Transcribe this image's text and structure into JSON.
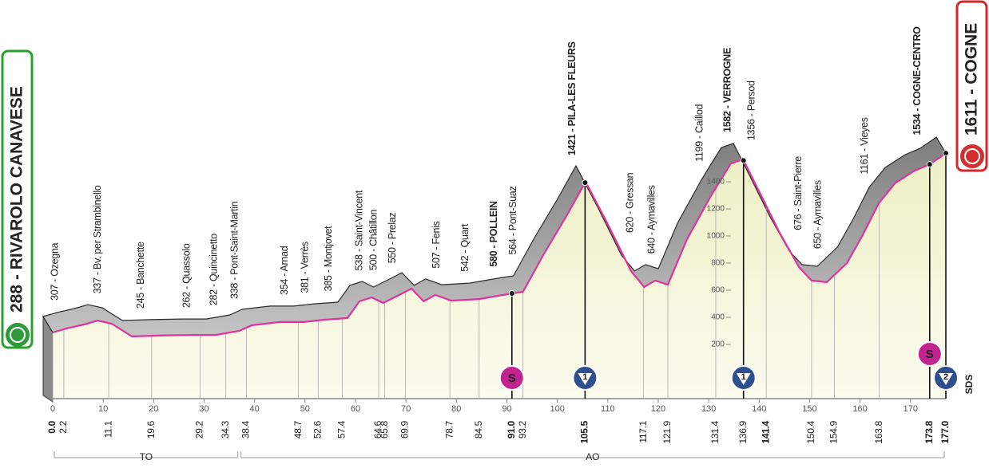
{
  "chart_data": {
    "type": "area",
    "start": "288 - RIVAROLO CANAVESE",
    "finish": "1611 - COGNE",
    "logo_text": "SDS",
    "x": [
      0,
      3.0,
      6.2,
      8.9,
      11.7,
      15.7,
      21.2,
      27.5,
      32.3,
      37.0,
      39.4,
      45.0,
      49.7,
      53.7,
      58.4,
      60.8,
      63.2,
      65.5,
      68.7,
      71.1,
      73.5,
      75.8,
      79.0,
      84.5,
      90.9,
      93.2,
      97.2,
      101.9,
      105.6,
      109.9,
      114.6,
      117.2,
      119.4,
      121.9,
      125.7,
      130.5,
      134.4,
      136.8,
      140.0,
      143.9,
      147.9,
      150.4,
      153.4,
      157.4,
      160.5,
      163.7,
      166.9,
      170.8,
      173.8,
      177.0
    ],
    "values": [
      288,
      320,
      347,
      376,
      353,
      259,
      265,
      270,
      270,
      300,
      341,
      365,
      365,
      382,
      394,
      518,
      547,
      506,
      565,
      612,
      518,
      565,
      523,
      535,
      576,
      588,
      859,
      1153,
      1400,
      1094,
      741,
      624,
      671,
      641,
      976,
      1300,
      1535,
      1565,
      1329,
      1035,
      770,
      671,
      659,
      800,
      1006,
      1241,
      1388,
      1482,
      1529,
      1611
    ],
    "color": "#e0339b",
    "xlim": [
      0,
      177
    ],
    "xticks": [
      0,
      10,
      20,
      30,
      40,
      50,
      60,
      70,
      80,
      90,
      100,
      110,
      120,
      130,
      140,
      150,
      160,
      170
    ],
    "ylim": [
      -200,
      1800
    ],
    "yticks": [
      200,
      400,
      600,
      800,
      1000,
      1200,
      1400
    ],
    "km_marks": [
      {
        "value": 0,
        "label": "0.0"
      },
      2.2,
      11.1,
      19.6,
      29.2,
      34.3,
      38.4,
      48.7,
      52.6,
      57.4,
      64.6,
      65.8,
      69.9,
      78.7,
      84.5,
      {
        "value": 91,
        "label": "91.0"
      },
      93.2,
      105.5,
      117.1,
      121.9,
      131.4,
      136.9,
      141.4,
      150.4,
      154.9,
      163.8,
      173.8,
      {
        "value": 177,
        "label": "177.0"
      }
    ],
    "km_marks_bold": [
      true,
      false,
      false,
      false,
      false,
      false,
      false,
      false,
      false,
      false,
      false,
      false,
      false,
      false,
      false,
      true,
      false,
      true,
      false,
      false,
      false,
      false,
      true,
      false,
      false,
      false,
      true,
      true
    ],
    "places": [
      "307 - Ozegna",
      "337 - Bv. per Strambinello",
      "245 - Banchette",
      "262 - Quassolo",
      "282 - Quincinetto",
      "338 - Pont-Saint-Martin",
      "354 - Arnad",
      "381 - Verrès",
      "385 - Montjovet",
      "538 - Saint-Vincent",
      "500 - Châtillon",
      "550 - Prelaz",
      "507 - Fenis",
      "542 - Quart",
      "580 - POLLEIN",
      "564 - Pont-Suaz",
      "1421 - PILA-LES FLEURS",
      "620 - Gressan",
      "640 - Aymavilles",
      "1199 - Caillod",
      "1582 - VERROGNE",
      "1356 - Persod",
      "676 - Saint-Pierre",
      "650 - Aymavilles",
      "1161 - Vieyes",
      "1534 - COGNE-CENTRO"
    ],
    "places_km": [
      0.5,
      9.0,
      17.5,
      26.6,
      32.0,
      36.1,
      46.0,
      50.1,
      54.7,
      60.8,
      63.7,
      67.4,
      76.1,
      81.8,
      87.5,
      91.3,
      103.0,
      114.5,
      118.8,
      128.3,
      133.8,
      138.6,
      147.8,
      151.7,
      161.0,
      171.4
    ],
    "places_bold": [
      false,
      false,
      false,
      false,
      false,
      false,
      false,
      false,
      false,
      false,
      false,
      false,
      false,
      false,
      true,
      false,
      true,
      false,
      false,
      false,
      true,
      false,
      false,
      false,
      false,
      true
    ],
    "markers": [
      {
        "km": 91.0,
        "label": "S",
        "kind": "sprint"
      },
      {
        "km": 105.5,
        "label": "1",
        "kind": "climb"
      },
      {
        "km": 136.9,
        "label": "1",
        "kind": "climb"
      },
      {
        "km": 173.8,
        "label": "S",
        "kind": "sprint"
      },
      {
        "km": 177.0,
        "label": "2",
        "kind": "climb"
      }
    ],
    "regions": [
      {
        "label": "TO",
        "from": 0,
        "to": 37
      },
      {
        "label": "AO",
        "from": 37,
        "to": 177
      }
    ]
  }
}
